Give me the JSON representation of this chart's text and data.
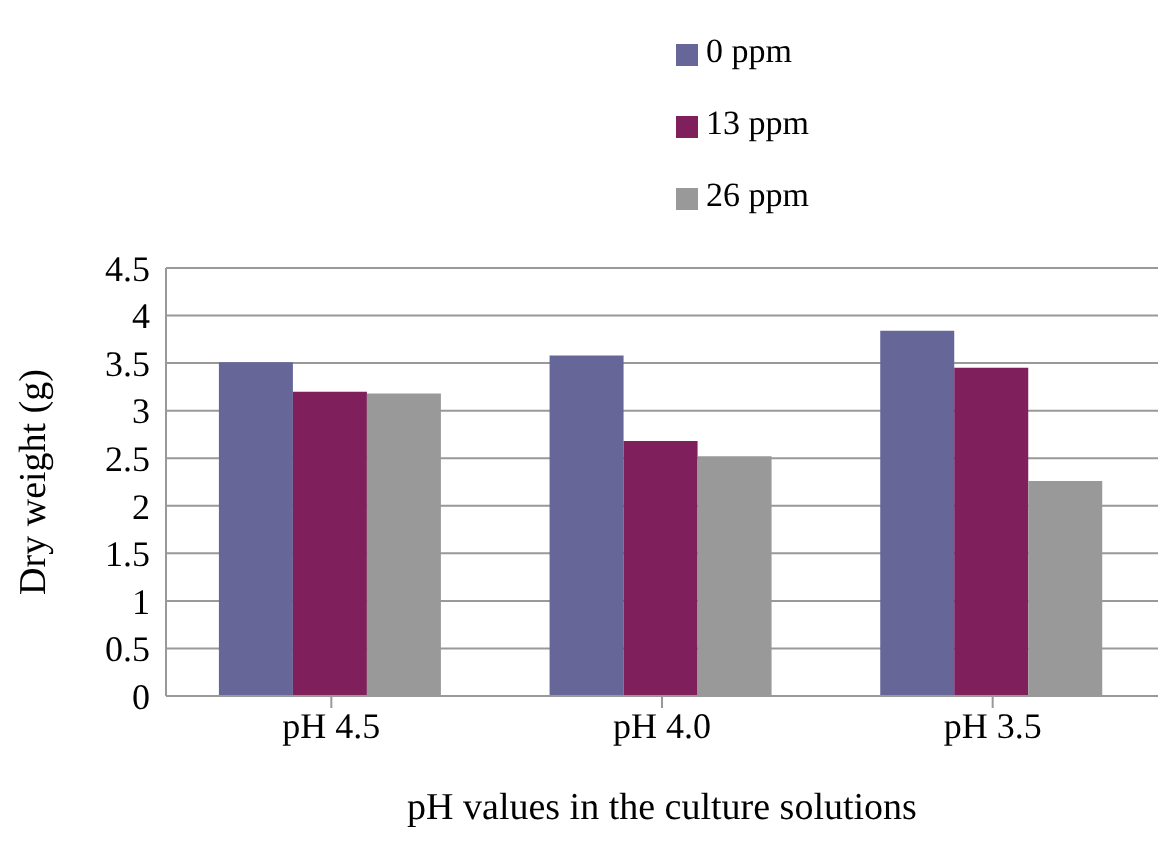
{
  "chart_data": {
    "type": "bar",
    "categories": [
      "pH 4.5",
      "pH 4.0",
      "pH 3.5"
    ],
    "series": [
      {
        "name": "0 ppm",
        "color": "#676699",
        "values": [
          3.51,
          3.58,
          3.84
        ]
      },
      {
        "name": "13 ppm",
        "color": "#7f1f5c",
        "values": [
          3.2,
          2.68,
          3.45
        ]
      },
      {
        "name": "26 ppm",
        "color": "#999999",
        "values": [
          3.18,
          2.52,
          2.26
        ]
      }
    ],
    "xlabel": "pH values in the culture solutions",
    "ylabel": "Dry weight (g)",
    "ylim": [
      0,
      4.5
    ],
    "yticks": [
      0,
      0.5,
      1,
      1.5,
      2,
      2.5,
      3,
      3.5,
      4,
      4.5
    ],
    "grid": "y",
    "legend": "top"
  }
}
